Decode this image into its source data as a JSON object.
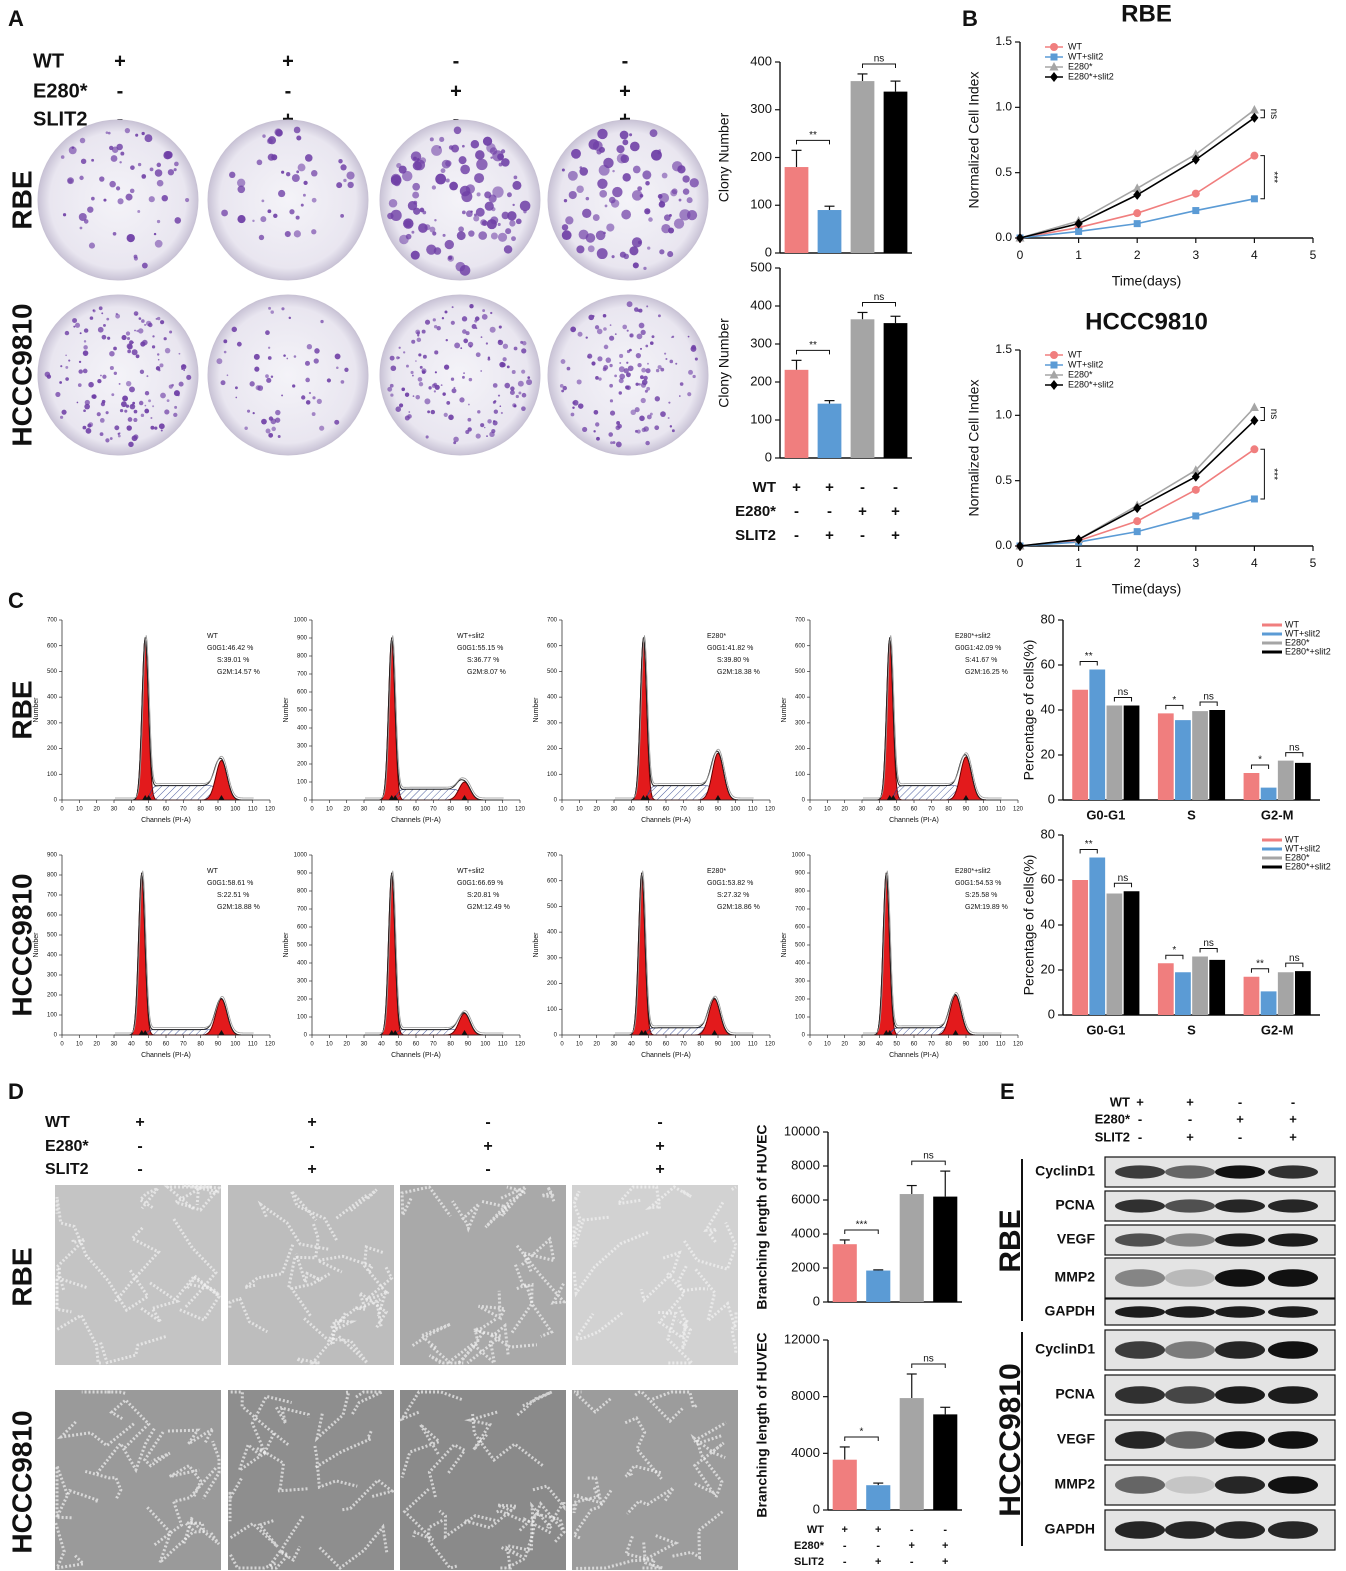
{
  "panel_labels": [
    "A",
    "B",
    "C",
    "D",
    "E"
  ],
  "colony": {
    "table": [
      {
        "label": "WT",
        "signs": [
          "+",
          "+",
          "-",
          "-"
        ]
      },
      {
        "label": "E280*",
        "signs": [
          "-",
          "-",
          "+",
          "+"
        ]
      },
      {
        "label": "SLIT2",
        "signs": [
          "-",
          "+",
          "-",
          "+"
        ]
      }
    ],
    "rows": [
      "RBE",
      "HCCC9810"
    ]
  },
  "flow": {
    "rows": [
      "RBE",
      "HCCC9810"
    ],
    "ylabel": "Number",
    "xlabel": "Channels (PI-A)",
    "xticks": [
      0,
      10,
      20,
      30,
      40,
      50,
      60,
      70,
      80,
      90,
      100,
      110,
      120
    ],
    "plots": [
      {
        "title": "WT",
        "stats": [
          "G0G1:46.42 %",
          "S:39.01 %",
          "G2M:14.57 %"
        ],
        "yticks": [
          0,
          100,
          200,
          300,
          400,
          500,
          600,
          700
        ]
      },
      {
        "title": "WT+slit2",
        "stats": [
          "G0G1:55.15 %",
          "S:36.77 %",
          "G2M:8.07 %"
        ],
        "yticks": [
          0,
          100,
          200,
          300,
          400,
          500,
          600,
          700,
          800,
          900,
          1000
        ]
      },
      {
        "title": "E280*",
        "stats": [
          "G0G1:41.82 %",
          "S:39.80 %",
          "G2M:18.38 %"
        ],
        "yticks": [
          0,
          100,
          200,
          300,
          400,
          500,
          600,
          700
        ]
      },
      {
        "title": "E280*+slit2",
        "stats": [
          "G0G1:42.09 %",
          "S:41.67 %",
          "G2M:16.25 %"
        ],
        "yticks": [
          0,
          100,
          200,
          300,
          400,
          500,
          600,
          700
        ]
      },
      {
        "title": "WT",
        "stats": [
          "G0G1:58.61 %",
          "S:22.51 %",
          "G2M:18.88 %"
        ],
        "yticks": [
          0,
          100,
          200,
          300,
          400,
          500,
          600,
          700,
          800,
          900
        ]
      },
      {
        "title": "WT+slit2",
        "stats": [
          "G0G1:66.69 %",
          "S:20.81 %",
          "G2M:12.49 %"
        ],
        "yticks": [
          0,
          100,
          200,
          300,
          400,
          500,
          600,
          700,
          800,
          900,
          1000
        ]
      },
      {
        "title": "E280*",
        "stats": [
          "G0G1:53.82 %",
          "S:27.32 %",
          "G2M:18.86 %"
        ],
        "yticks": [
          0,
          100,
          200,
          300,
          400,
          500,
          600,
          700
        ]
      },
      {
        "title": "E280*+slit2",
        "stats": [
          "G0G1:54.53 %",
          "S:25.58 %",
          "G2M:19.89 %"
        ],
        "yticks": [
          0,
          100,
          200,
          300,
          400,
          500,
          600,
          700,
          800,
          900,
          1000
        ]
      }
    ]
  },
  "tube": {
    "table": [
      {
        "label": "WT",
        "signs": [
          "+",
          "+",
          "-",
          "-"
        ]
      },
      {
        "label": "E280*",
        "signs": [
          "-",
          "-",
          "+",
          "+"
        ]
      },
      {
        "label": "SLIT2",
        "signs": [
          "-",
          "+",
          "-",
          "+"
        ]
      }
    ],
    "rows": [
      "RBE",
      "HCCC9810"
    ]
  },
  "blot": {
    "table": [
      {
        "label": "WT",
        "signs": [
          "+",
          "+",
          "-",
          "-"
        ]
      },
      {
        "label": "E280*",
        "signs": [
          "-",
          "-",
          "+",
          "+"
        ]
      },
      {
        "label": "SLIT2",
        "signs": [
          "-",
          "+",
          "-",
          "+"
        ]
      }
    ],
    "groups": [
      {
        "name": "RBE",
        "proteins": [
          "CyclinD1",
          "PCNA",
          "VEGF",
          "MMP2",
          "GAPDH"
        ]
      },
      {
        "name": "HCCC9810",
        "proteins": [
          "CyclinD1",
          "PCNA",
          "VEGF",
          "MMP2",
          "GAPDH"
        ]
      }
    ]
  },
  "chart_data": [
    {
      "type": "bar",
      "ylabel": "Clony Number",
      "ylim": [
        0,
        400
      ],
      "yticks": [
        0,
        100,
        200,
        300,
        400
      ],
      "values": [
        180,
        90,
        360,
        338
      ],
      "errors": [
        35,
        8,
        15,
        22
      ],
      "colors": [
        "#f07e7e",
        "#5b9bd5",
        "#a5a5a5",
        "#000000"
      ],
      "annotations": [
        "**",
        "ns"
      ]
    },
    {
      "type": "bar",
      "ylabel": "Clony Number",
      "ylim": [
        0,
        500
      ],
      "yticks": [
        0,
        100,
        200,
        300,
        400,
        500
      ],
      "values": [
        232,
        143,
        365,
        355
      ],
      "errors": [
        25,
        8,
        18,
        18
      ],
      "colors": [
        "#f07e7e",
        "#5b9bd5",
        "#a5a5a5",
        "#000000"
      ],
      "annotations": [
        "**",
        "ns"
      ],
      "table": [
        {
          "label": "WT",
          "signs": [
            "+",
            "+",
            "-",
            "-"
          ]
        },
        {
          "label": "E280*",
          "signs": [
            "-",
            "-",
            "+",
            "+"
          ]
        },
        {
          "label": "SLIT2",
          "signs": [
            "-",
            "+",
            "-",
            "+"
          ]
        }
      ]
    },
    {
      "type": "line",
      "title": "RBE",
      "xlabel": "Time(days)",
      "ylabel": "Normalized Cell Index",
      "x": [
        0,
        1,
        2,
        3,
        4
      ],
      "xlim": [
        0,
        5
      ],
      "xticks": [
        0,
        1,
        2,
        3,
        4,
        5
      ],
      "ylim": [
        0,
        1.5
      ],
      "yticks": [
        {
          "value": 0,
          "label": "0.0"
        },
        {
          "value": 0.5,
          "label": "0.5"
        },
        {
          "value": 1,
          "label": "1.0"
        },
        {
          "value": 1.5,
          "label": "1.5"
        }
      ],
      "series": [
        {
          "name": "WT",
          "color": "#f07e7e",
          "marker": "circle",
          "values": [
            0,
            0.08,
            0.19,
            0.34,
            0.63
          ]
        },
        {
          "name": "WT+slit2",
          "color": "#5b9bd5",
          "marker": "square",
          "values": [
            0,
            0.05,
            0.11,
            0.21,
            0.3
          ]
        },
        {
          "name": "E280*",
          "color": "#a5a5a5",
          "marker": "triangle",
          "values": [
            0,
            0.13,
            0.38,
            0.64,
            0.98
          ]
        },
        {
          "name": "E280*+slit2",
          "color": "#000000",
          "marker": "diamond",
          "values": [
            0,
            0.11,
            0.33,
            0.6,
            0.92
          ]
        }
      ],
      "annotations": [
        "ns",
        "***"
      ]
    },
    {
      "type": "line",
      "title": "HCCC9810",
      "xlabel": "Time(days)",
      "ylabel": "Normalized Cell Index",
      "x": [
        0,
        1,
        2,
        3,
        4
      ],
      "xlim": [
        0,
        5
      ],
      "xticks": [
        0,
        1,
        2,
        3,
        4,
        5
      ],
      "ylim": [
        0,
        1.5
      ],
      "yticks": [
        {
          "value": 0,
          "label": "0.0"
        },
        {
          "value": 0.5,
          "label": "0.5"
        },
        {
          "value": 1,
          "label": "1.0"
        },
        {
          "value": 1.5,
          "label": "1.5"
        }
      ],
      "series": [
        {
          "name": "WT",
          "color": "#f07e7e",
          "marker": "circle",
          "values": [
            0,
            0.04,
            0.19,
            0.43,
            0.74
          ]
        },
        {
          "name": "WT+slit2",
          "color": "#5b9bd5",
          "marker": "square",
          "values": [
            0,
            0.03,
            0.11,
            0.23,
            0.36
          ]
        },
        {
          "name": "E280*",
          "color": "#a5a5a5",
          "marker": "triangle",
          "values": [
            0,
            0.05,
            0.31,
            0.58,
            1.06
          ]
        },
        {
          "name": "E280*+slit2",
          "color": "#000000",
          "marker": "diamond",
          "values": [
            0,
            0.05,
            0.29,
            0.53,
            0.96
          ]
        }
      ],
      "annotations": [
        "ns",
        "***"
      ]
    },
    {
      "type": "grouped_bar",
      "ylabel": "Percentage of cells(%)",
      "categories": [
        "G0-G1",
        "S",
        "G2-M"
      ],
      "ylim": [
        0,
        80
      ],
      "yticks": [
        0,
        20,
        40,
        60,
        80
      ],
      "series": [
        {
          "name": "WT",
          "color": "#f07e7e",
          "values": [
            49,
            38.5,
            12
          ]
        },
        {
          "name": "WT+slit2",
          "color": "#5b9bd5",
          "values": [
            58,
            35.5,
            5.5
          ]
        },
        {
          "name": "E280*",
          "color": "#a5a5a5",
          "values": [
            42,
            39.5,
            17.5
          ]
        },
        {
          "name": "E280*+slit2",
          "color": "#000000",
          "values": [
            42,
            40,
            16.5
          ]
        }
      ],
      "annotations": [
        "**",
        "ns",
        "*",
        "ns",
        "*",
        "ns"
      ]
    },
    {
      "type": "grouped_bar",
      "ylabel": "Percentage of cells(%)",
      "categories": [
        "G0-G1",
        "S",
        "G2-M"
      ],
      "ylim": [
        0,
        80
      ],
      "yticks": [
        0,
        20,
        40,
        60,
        80
      ],
      "series": [
        {
          "name": "WT",
          "color": "#f07e7e",
          "values": [
            60,
            23,
            17
          ]
        },
        {
          "name": "WT+slit2",
          "color": "#5b9bd5",
          "values": [
            70,
            19,
            10.5
          ]
        },
        {
          "name": "E280*",
          "color": "#a5a5a5",
          "values": [
            54,
            26,
            19
          ]
        },
        {
          "name": "E280*+slit2",
          "color": "#000000",
          "values": [
            55,
            24.5,
            19.5
          ]
        }
      ],
      "annotations": [
        "**",
        "ns",
        "*",
        "ns",
        "**",
        "ns"
      ]
    },
    {
      "type": "bar",
      "ylabel": "Branching length of HUVEC",
      "ylim": [
        0,
        10000
      ],
      "yticks": [
        0,
        2000,
        4000,
        6000,
        8000,
        10000
      ],
      "values": [
        3400,
        1850,
        6350,
        6200
      ],
      "errors": [
        250,
        40,
        500,
        1500
      ],
      "colors": [
        "#f07e7e",
        "#5b9bd5",
        "#a5a5a5",
        "#000000"
      ],
      "annotations": [
        "***",
        "ns"
      ]
    },
    {
      "type": "bar",
      "ylabel": "Branching length of HUVEC",
      "ylim": [
        0,
        12000
      ],
      "yticks": [
        0,
        4000,
        8000,
        12000
      ],
      "values": [
        3550,
        1750,
        7900,
        6750
      ],
      "errors": [
        900,
        150,
        1700,
        500
      ],
      "colors": [
        "#f07e7e",
        "#5b9bd5",
        "#a5a5a5",
        "#000000"
      ],
      "annotations": [
        "*",
        "ns"
      ],
      "table": [
        {
          "label": "WT",
          "signs": [
            "+",
            "+",
            "-",
            "-"
          ]
        },
        {
          "label": "E280*",
          "signs": [
            "-",
            "-",
            "+",
            "+"
          ]
        },
        {
          "label": "SLIT2",
          "signs": [
            "-",
            "+",
            "-",
            "+"
          ]
        }
      ]
    }
  ]
}
